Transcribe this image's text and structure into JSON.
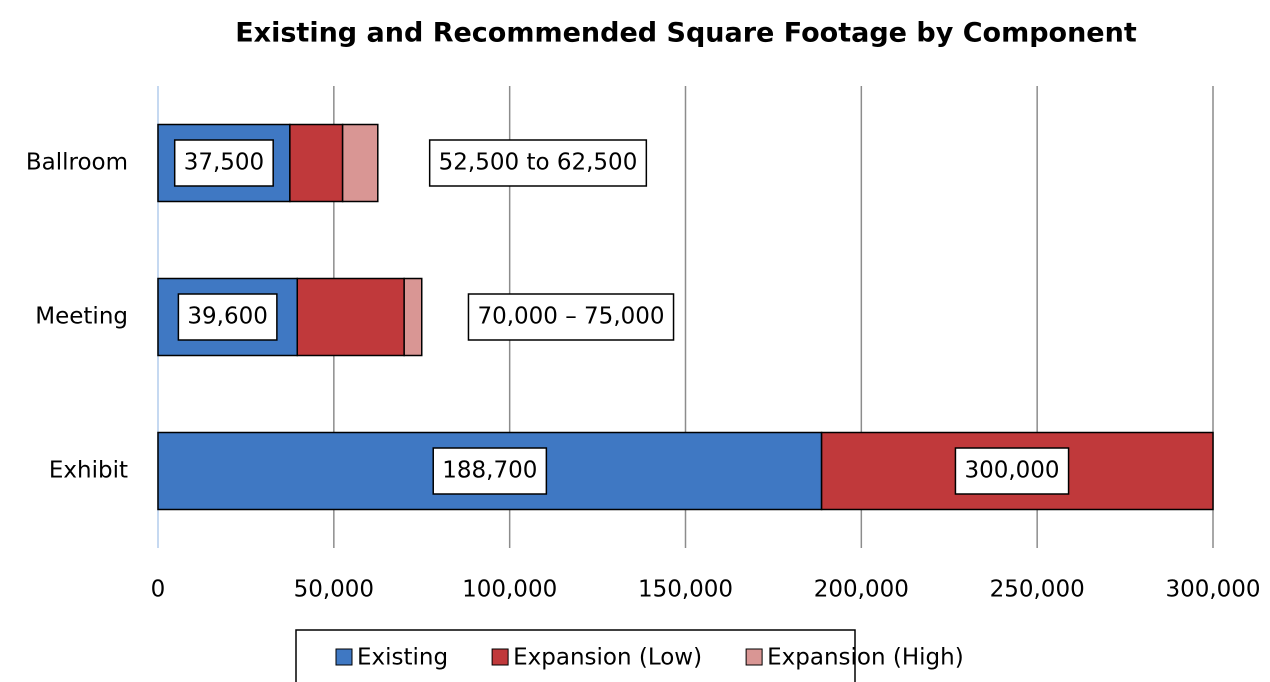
{
  "chart_data": {
    "type": "stacked_barh",
    "title": "Existing and Recommended Square Footage by Component",
    "categories": [
      "Ballroom",
      "Meeting",
      "Exhibit"
    ],
    "series": [
      {
        "name": "Existing",
        "color": "#3f78c3",
        "values": [
          37500,
          39600,
          188700
        ],
        "value_labels": [
          "37,500",
          "39,600",
          "188,700"
        ]
      },
      {
        "name": "Expansion (Low)",
        "color": "#c0393b",
        "values": [
          15000,
          30400,
          111300
        ]
      },
      {
        "name": "Expansion (High)",
        "color": "#d99694",
        "values": [
          10000,
          5000,
          0
        ]
      }
    ],
    "annotations": [
      "52,500 to 62,500",
      "70,000 – 75,000",
      "300,000"
    ],
    "xlim": [
      0,
      300000
    ],
    "xticks": [
      0,
      {
        "value": 50000,
        "label": "50,000"
      },
      {
        "value": 100000,
        "label": "100,000"
      },
      {
        "value": 150000,
        "label": "150,000"
      },
      {
        "value": 200000,
        "label": "200,000"
      },
      {
        "value": 250000,
        "label": "250,000"
      },
      {
        "value": 300000,
        "label": "300,000"
      }
    ],
    "grid": true,
    "legend": "bottom"
  }
}
